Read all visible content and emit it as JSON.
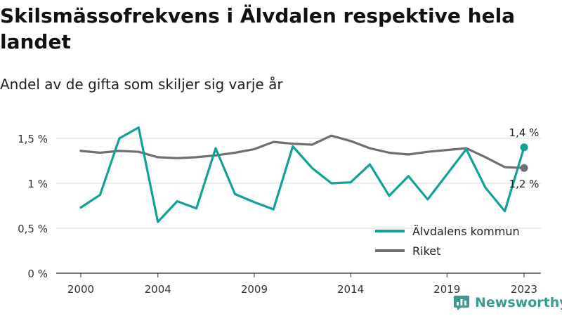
{
  "title": "Skilsmässofrekvens i Älvdalen respektive hela landet",
  "subtitle": "Andel av de gifta som skiljer sig varje år",
  "brand": {
    "name": "Newsworthy",
    "logo_icon": "newsworthy-logo-icon"
  },
  "chart_data": {
    "type": "line",
    "x": [
      2000,
      2001,
      2002,
      2003,
      2004,
      2005,
      2006,
      2007,
      2008,
      2009,
      2010,
      2011,
      2012,
      2013,
      2014,
      2015,
      2016,
      2017,
      2018,
      2019,
      2020,
      2021,
      2022,
      2023
    ],
    "x_ticks": [
      2000,
      2004,
      2009,
      2014,
      2019,
      2023
    ],
    "x_tick_labels": [
      "2000",
      "2004",
      "2009",
      "2014",
      "2019",
      "2023"
    ],
    "ylim": [
      0,
      1.6
    ],
    "y_ticks": [
      0,
      0.5,
      1,
      1.5
    ],
    "y_tick_labels": [
      "0 %",
      "0,5 %",
      "1 %",
      "1,5 %"
    ],
    "grid": "horizontal",
    "legend_position": "bottom-right",
    "series": [
      {
        "name": "Älvdalens kommun",
        "color": "#12a195",
        "values": [
          0.73,
          0.87,
          1.5,
          1.62,
          0.57,
          0.8,
          0.72,
          1.39,
          0.88,
          0.79,
          0.71,
          1.41,
          1.17,
          1.0,
          1.01,
          1.21,
          0.86,
          1.08,
          0.82,
          1.1,
          1.38,
          0.95,
          0.69,
          1.4
        ],
        "end_label": "1,4 %"
      },
      {
        "name": "Riket",
        "color": "#6e6e73",
        "values": [
          1.36,
          1.34,
          1.36,
          1.35,
          1.29,
          1.28,
          1.29,
          1.31,
          1.34,
          1.38,
          1.46,
          1.44,
          1.43,
          1.53,
          1.47,
          1.39,
          1.34,
          1.32,
          1.35,
          1.37,
          1.39,
          1.29,
          1.18,
          1.17
        ],
        "end_label": "1,2 %"
      }
    ]
  }
}
